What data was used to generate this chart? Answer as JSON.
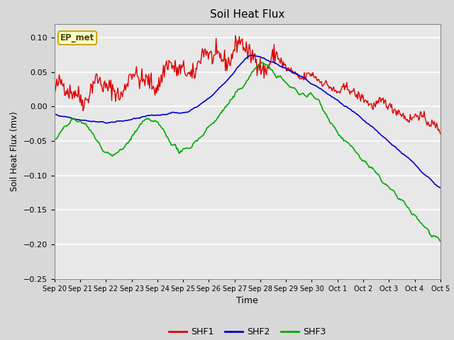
{
  "title": "Soil Heat Flux",
  "xlabel": "Time",
  "ylabel": "Soil Heat Flux (mv)",
  "ylim": [
    -0.25,
    0.12
  ],
  "yticks": [
    -0.25,
    -0.2,
    -0.15,
    -0.1,
    -0.05,
    0.0,
    0.05,
    0.1
  ],
  "bg_color": "#d8d8d8",
  "plot_bg_color": "#e8e8e8",
  "annotation_label": "EP_met",
  "annotation_bg": "#ffffcc",
  "annotation_border": "#ccaa00",
  "line_colors": [
    "#dd0000",
    "#0000cc",
    "#00aa00"
  ],
  "legend_labels": [
    "SHF1",
    "SHF2",
    "SHF3"
  ],
  "tick_labels": [
    "Sep 20",
    "Sep 21",
    "Sep 22",
    "Sep 23",
    "Sep 24",
    "Sep 25",
    "Sep 26",
    "Sep 27",
    "Sep 28",
    "Sep 29",
    "Sep 30",
    "Oct 1",
    "Oct 2",
    "Oct 3",
    "Oct 4",
    "Oct 5"
  ]
}
